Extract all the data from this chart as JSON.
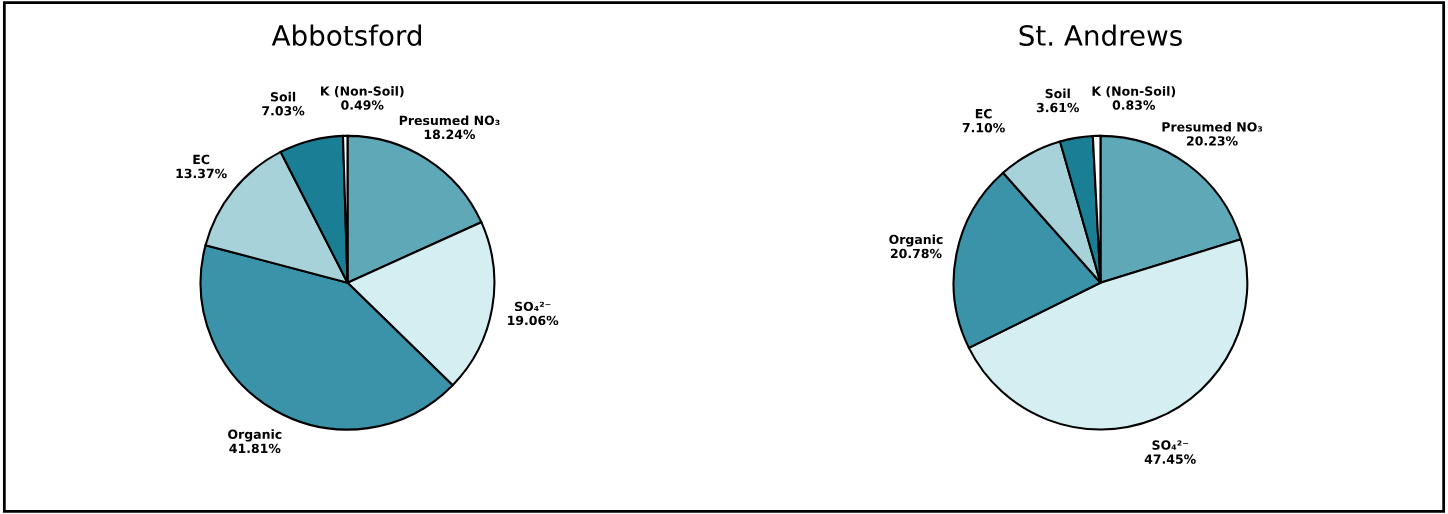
{
  "chart_data": [
    {
      "type": "pie",
      "title": "Abbotsford",
      "categories": [
        "Presumed NO₃",
        "SO₄²⁻",
        "Organic",
        "EC",
        "Soil",
        "K (Non-Soil)"
      ],
      "values": [
        18.24,
        19.06,
        41.81,
        13.37,
        7.03,
        0.49
      ],
      "value_labels": [
        "18.24%",
        "19.06%",
        "41.81%",
        "13.37%",
        "7.03%",
        "0.49%"
      ],
      "colors": [
        "#5fa8b8",
        "#d4eef2",
        "#3a93a8",
        "#a8d2da",
        "#1a7f94",
        "#ffffff"
      ]
    },
    {
      "type": "pie",
      "title": "St. Andrews",
      "categories": [
        "Presumed NO₃",
        "SO₄²⁻",
        "Organic",
        "EC",
        "Soil",
        "K (Non-Soil)"
      ],
      "values": [
        20.23,
        47.45,
        20.78,
        7.1,
        3.61,
        0.83
      ],
      "value_labels": [
        "20.23%",
        "47.45%",
        "20.78%",
        "7.10%",
        "3.61%",
        "0.83%"
      ],
      "colors": [
        "#5fa8b8",
        "#d4eef2",
        "#3a93a8",
        "#a8d2da",
        "#1a7f94",
        "#ffffff"
      ]
    }
  ]
}
